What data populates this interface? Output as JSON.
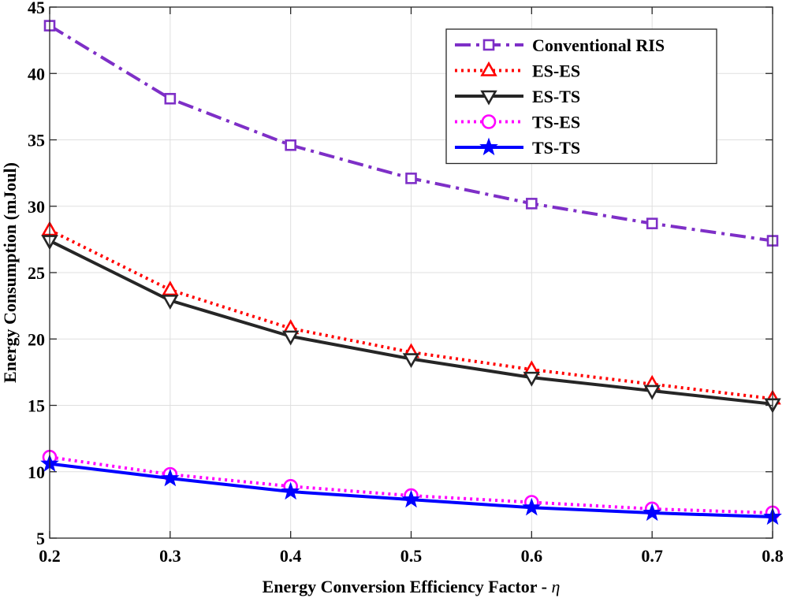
{
  "chart_data": {
    "type": "line",
    "title": "",
    "xlabel": "Energy Conversion Efficiency Factor - ",
    "xlabel_symbol": "η",
    "ylabel": "Energy Consumption (mJoul)",
    "xlim": [
      0.2,
      0.8
    ],
    "ylim": [
      5,
      45
    ],
    "xticks": [
      0.2,
      0.3,
      0.4,
      0.5,
      0.6,
      0.7,
      0.8
    ],
    "xtick_labels": [
      "0.2",
      "0.3",
      "0.4",
      "0.5",
      "0.6",
      "0.7",
      "0.8"
    ],
    "yticks": [
      5,
      10,
      15,
      20,
      25,
      30,
      35,
      40,
      45
    ],
    "ytick_labels": [
      "5",
      "10",
      "15",
      "20",
      "25",
      "30",
      "35",
      "40",
      "45"
    ],
    "grid": true,
    "legend_position": "top-right",
    "x": [
      0.2,
      0.3,
      0.4,
      0.5,
      0.6,
      0.7,
      0.8
    ],
    "series": [
      {
        "name": "Conventional RIS",
        "values": [
          43.6,
          38.1,
          34.6,
          32.1,
          30.2,
          28.7,
          27.4
        ],
        "color": "#7e2fc7",
        "dash": "dashdot",
        "marker": "square"
      },
      {
        "name": "ES-ES",
        "values": [
          28.2,
          23.7,
          20.8,
          19.0,
          17.7,
          16.6,
          15.5
        ],
        "color": "#ff0000",
        "dash": "dotted",
        "marker": "triangle-up"
      },
      {
        "name": "ES-TS",
        "values": [
          27.4,
          22.9,
          20.2,
          18.5,
          17.1,
          16.1,
          15.1
        ],
        "color": "#262626",
        "dash": "solid",
        "marker": "triangle-down"
      },
      {
        "name": "TS-ES",
        "values": [
          11.1,
          9.8,
          8.9,
          8.2,
          7.7,
          7.2,
          6.9
        ],
        "color": "#ff00ff",
        "dash": "dotted",
        "marker": "circle"
      },
      {
        "name": "TS-TS",
        "values": [
          10.6,
          9.5,
          8.5,
          7.9,
          7.3,
          6.9,
          6.6
        ],
        "color": "#0000ff",
        "dash": "solid",
        "marker": "star"
      }
    ]
  }
}
